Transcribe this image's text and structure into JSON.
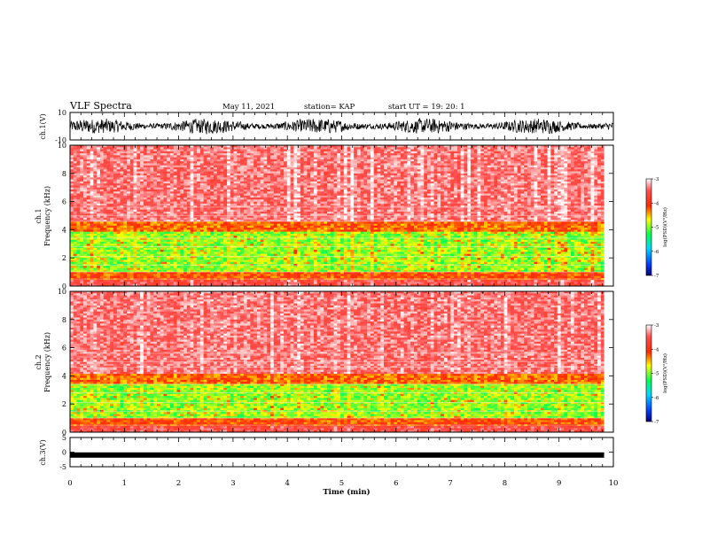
{
  "header": {
    "title": "VLF Spectra",
    "date": "May 11, 2021",
    "station": "station= KAP",
    "start_time": "start UT = 19: 20: 1"
  },
  "chart_data": [
    {
      "type": "line",
      "panel": "ch1-waveform",
      "ylabel": "ch.1(V)",
      "ylim": [
        -10,
        10
      ],
      "yticks": [
        "10",
        "-10"
      ],
      "xlim": [
        0,
        10
      ],
      "trace_color": "#000000",
      "description_values": {
        "typical_amplitude_range": [
          -7,
          6
        ]
      }
    },
    {
      "type": "heatmap",
      "panel": "ch1-spectrogram",
      "ylabel_line1": "ch.1",
      "ylabel_line2": "Frequency (kHz)",
      "ylim": [
        0,
        10
      ],
      "yticks": [
        "0",
        "2",
        "4",
        "6",
        "8",
        "10"
      ],
      "xlim": [
        0,
        9.83
      ],
      "colorbar": {
        "label": "log(PSD)(V²/Hz)",
        "range": [
          -7,
          -3
        ],
        "ticks": [
          "-3",
          "-4",
          "-5",
          "-6",
          "-7"
        ]
      },
      "bands": [
        {
          "f_from": 0.0,
          "f_to": 0.5,
          "level": -3.6
        },
        {
          "f_from": 0.5,
          "f_to": 1.0,
          "level": -4.2
        },
        {
          "f_from": 1.0,
          "f_to": 3.8,
          "level": -5.0
        },
        {
          "f_from": 3.8,
          "f_to": 4.6,
          "level": -4.3
        },
        {
          "f_from": 4.6,
          "f_to": 10.0,
          "level": -3.4
        }
      ]
    },
    {
      "type": "heatmap",
      "panel": "ch2-spectrogram",
      "ylabel_line1": "ch.2",
      "ylabel_line2": "Frequency (kHz)",
      "ylim": [
        0,
        10
      ],
      "yticks": [
        "0",
        "2",
        "4",
        "6",
        "8",
        "10"
      ],
      "xlim": [
        0,
        9.83
      ],
      "colorbar": {
        "label": "log(PSD)(V²/Hz)",
        "range": [
          -7,
          -3
        ],
        "ticks": [
          "-3",
          "-4",
          "-5",
          "-6",
          "-7"
        ]
      },
      "bands": [
        {
          "f_from": 0.0,
          "f_to": 0.5,
          "level": -3.6
        },
        {
          "f_from": 0.5,
          "f_to": 1.0,
          "level": -4.2
        },
        {
          "f_from": 1.0,
          "f_to": 3.4,
          "level": -5.0
        },
        {
          "f_from": 3.4,
          "f_to": 4.2,
          "level": -4.3
        },
        {
          "f_from": 4.2,
          "f_to": 10.0,
          "level": -3.4
        }
      ]
    },
    {
      "type": "line",
      "panel": "ch3-waveform",
      "ylabel": "ch.3(V)",
      "ylim": [
        -5,
        5
      ],
      "yticks": [
        "5",
        "0",
        "-5"
      ],
      "xlim": [
        0,
        10
      ],
      "trace_color": "#000000",
      "description_values": {
        "constant_level": -1
      }
    }
  ],
  "xaxis": {
    "label": "Time (min)",
    "ticks": [
      "0",
      "1",
      "2",
      "3",
      "4",
      "5",
      "6",
      "7",
      "8",
      "9",
      "10"
    ],
    "range": [
      0,
      10
    ]
  },
  "colors": {
    "scale": [
      "#00007a",
      "#0040ff",
      "#00d7ff",
      "#00ff55",
      "#ffff00",
      "#ff2a00",
      "#ffffff"
    ]
  }
}
